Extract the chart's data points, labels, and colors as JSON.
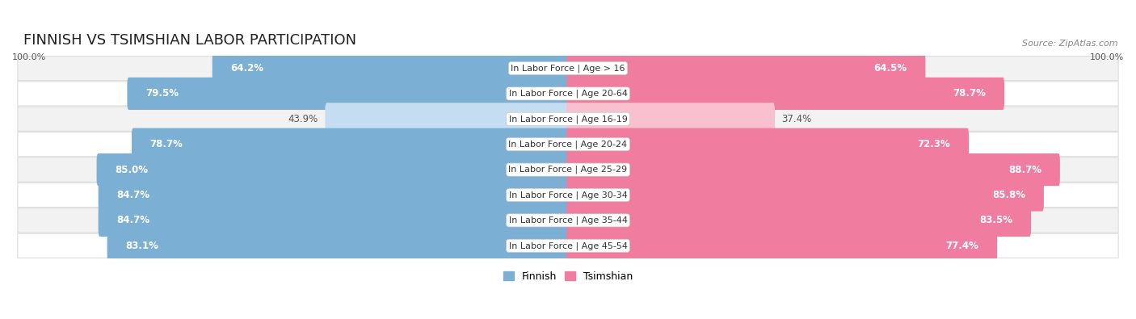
{
  "title": "FINNISH VS TSIMSHIAN LABOR PARTICIPATION",
  "source": "Source: ZipAtlas.com",
  "categories": [
    "In Labor Force | Age > 16",
    "In Labor Force | Age 20-64",
    "In Labor Force | Age 16-19",
    "In Labor Force | Age 20-24",
    "In Labor Force | Age 25-29",
    "In Labor Force | Age 30-34",
    "In Labor Force | Age 35-44",
    "In Labor Force | Age 45-54"
  ],
  "finnish_values": [
    64.2,
    79.5,
    43.9,
    78.7,
    85.0,
    84.7,
    84.7,
    83.1
  ],
  "tsimshian_values": [
    64.5,
    78.7,
    37.4,
    72.3,
    88.7,
    85.8,
    83.5,
    77.4
  ],
  "finnish_color": "#7bafd4",
  "finnish_color_light": "#c5ddf0",
  "tsimshian_color": "#f07ca0",
  "tsimshian_color_light": "#f9c0d0",
  "row_bg_even": "#f2f2f2",
  "row_bg_odd": "#ffffff",
  "row_border": "#dddddd",
  "max_value": 100.0,
  "legend_finnish": "Finnish",
  "legend_tsimshian": "Tsimshian",
  "title_fontsize": 13,
  "label_fontsize": 8.0,
  "value_fontsize": 8.5
}
